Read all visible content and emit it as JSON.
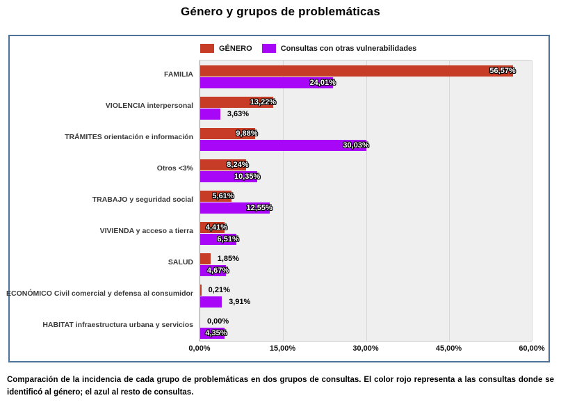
{
  "page": {
    "title": "Género y grupos de problemáticas",
    "caption": "Comparación de la incidencia de cada grupo de problemáticas en dos grupos de consultas. El color rojo representa a las consultas donde se identificó al género; el azul al resto de consultas."
  },
  "legend": {
    "items": [
      {
        "label": "GÉNERO",
        "color": "#c63c26"
      },
      {
        "label": "Consultas con otras vulnerabilidades",
        "color": "#a807f7"
      }
    ]
  },
  "chart_data": {
    "type": "bar",
    "orientation": "horizontal",
    "title": "Género y grupos de problemáticas",
    "xlabel": "",
    "ylabel": "",
    "xlim": [
      0,
      60
    ],
    "grid": true,
    "legend_position": "top",
    "plot_background": "#efefef",
    "x_ticks": [
      {
        "value": 0,
        "label": "0,00%"
      },
      {
        "value": 15,
        "label": "15,00%"
      },
      {
        "value": 30,
        "label": "30,00%"
      },
      {
        "value": 45,
        "label": "45,00%"
      },
      {
        "value": 60,
        "label": "60,00%"
      }
    ],
    "categories": [
      "FAMILIA",
      "VIOLENCIA interpersonal",
      "TRÁMITES orientación e información",
      "Otros <3%",
      "TRABAJO y seguridad social",
      "VIVIENDA y acceso a tierra",
      "SALUD",
      "ECONÓMICO Civil comercial y defensa al consumidor",
      "HABITAT infraestructura urbana y servicios"
    ],
    "series": [
      {
        "name": "GÉNERO",
        "color": "#c63c26",
        "values": [
          56.57,
          13.22,
          9.88,
          8.24,
          5.61,
          4.41,
          1.85,
          0.21,
          0.0
        ],
        "labels": [
          "56,57%",
          "13,22%",
          "9,88%",
          "8,24%",
          "5,61%",
          "4,41%",
          "1,85%",
          "0,21%",
          "0,00%"
        ],
        "label_inside": [
          true,
          true,
          true,
          true,
          true,
          true,
          false,
          false,
          false
        ]
      },
      {
        "name": "Consultas con otras vulnerabilidades",
        "color": "#a807f7",
        "values": [
          24.01,
          3.63,
          30.03,
          10.35,
          12.55,
          6.51,
          4.67,
          3.91,
          4.35
        ],
        "labels": [
          "24,01%",
          "3,63%",
          "30,03%",
          "10,35%",
          "12,55%",
          "6,51%",
          "4,67%",
          "3,91%",
          "4,35%"
        ],
        "label_inside": [
          true,
          false,
          true,
          true,
          true,
          true,
          true,
          false,
          true
        ]
      }
    ]
  },
  "colors": {
    "frame_border": "#4f7398",
    "grid": "#d7d7d7",
    "axis": "#8c8c8c"
  }
}
